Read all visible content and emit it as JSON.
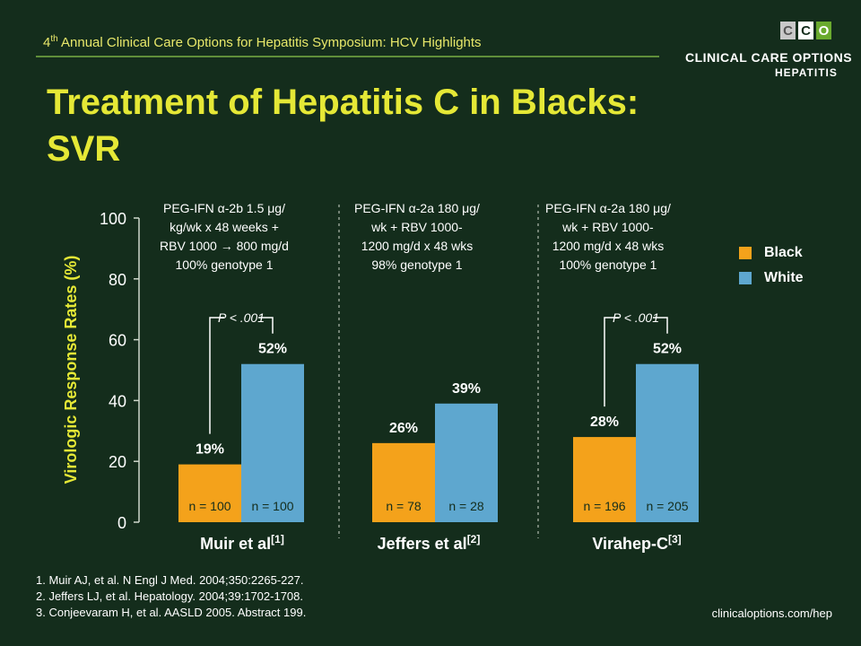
{
  "header": {
    "prefix": "4",
    "ordinal_suffix": "th",
    "rest": " Annual Clinical Care Options for Hepatitis Symposium: HCV Highlights"
  },
  "logo": {
    "letters": [
      "C",
      "C",
      "O"
    ],
    "line1": "CLINICAL CARE OPTIONS",
    "line2": "HEPATITIS"
  },
  "title": "Treatment of Hepatitis C in Blacks: SVR",
  "colors": {
    "background": "#142d1c",
    "black_bar": "#f4a21b",
    "white_bar": "#5ea7cf",
    "title": "#e5e836"
  },
  "chart_data": {
    "type": "bar",
    "ylabel": "Virologic Response Rates (%)",
    "ylim": [
      0,
      100
    ],
    "yticks": [
      0,
      20,
      40,
      60,
      80,
      100
    ],
    "categories": [
      "Muir et al",
      "Jeffers et al",
      "Virahep-C"
    ],
    "category_refs": [
      "[1]",
      "[2]",
      "[3]"
    ],
    "series": [
      {
        "name": "Black",
        "values": [
          19,
          26,
          28
        ],
        "labels": [
          "19%",
          "26%",
          "28%"
        ],
        "n": [
          "n = 100",
          "n = 78",
          "n = 196"
        ]
      },
      {
        "name": "White",
        "values": [
          52,
          39,
          52
        ],
        "labels": [
          "52%",
          "39%",
          "52%"
        ],
        "n": [
          "n = 100",
          "n = 28",
          "n = 205"
        ]
      }
    ],
    "pvalues": [
      "P < .001",
      "",
      "P < .001"
    ],
    "regimens": [
      [
        "PEG-IFN α-2b 1.5 μg/",
        "kg/wk x 48 weeks +",
        "RBV 1000 → 800 mg/d",
        "100% genotype 1"
      ],
      [
        "PEG-IFN α-2a 180 μg/",
        "wk + RBV 1000-",
        "1200 mg/d x 48 wks",
        "98% genotype 1"
      ],
      [
        "PEG-IFN α-2a 180 μg/",
        "wk + RBV 1000-",
        "1200 mg/d x 48 wks",
        "100% genotype 1"
      ]
    ],
    "legend": [
      "Black",
      "White"
    ],
    "legend_position": "right"
  },
  "references": [
    "1. Muir AJ, et al. N Engl J Med. 2004;350:2265-227.",
    "2. Jeffers LJ, et al. Hepatology. 2004;39:1702-1708.",
    "3. Conjeevaram H, et al. AASLD 2005. Abstract 199."
  ],
  "site": "clinicaloptions.com/hep"
}
